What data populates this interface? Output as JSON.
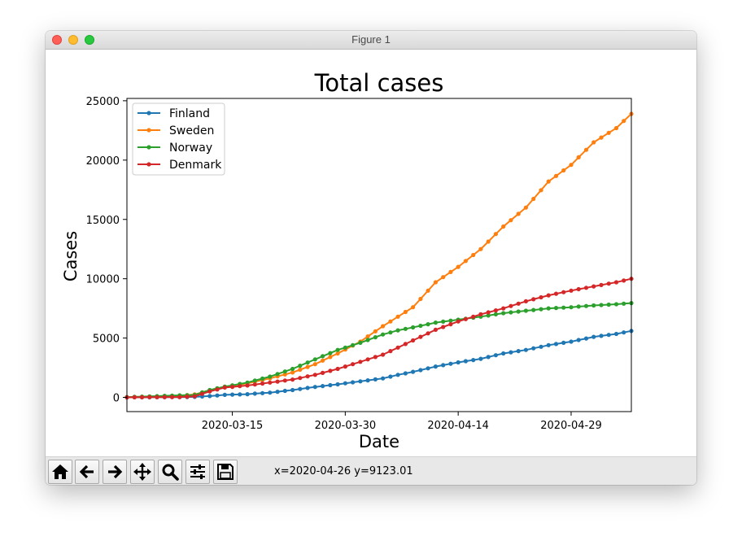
{
  "window": {
    "title": "Figure 1"
  },
  "toolbar": {
    "buttons": [
      {
        "name": "home-button",
        "icon": "home-icon"
      },
      {
        "name": "back-button",
        "icon": "arrow-left-icon"
      },
      {
        "name": "forward-button",
        "icon": "arrow-right-icon"
      },
      {
        "name": "pan-button",
        "icon": "move-icon"
      },
      {
        "name": "zoom-button",
        "icon": "magnifier-icon"
      },
      {
        "name": "configure-subplots-button",
        "icon": "sliders-icon"
      },
      {
        "name": "save-button",
        "icon": "floppy-disk-icon"
      }
    ],
    "coordinates": "x=2020-04-26 y=9123.01"
  },
  "chart_data": {
    "type": "line",
    "title": "Total cases",
    "xlabel": "Date",
    "ylabel": "Cases",
    "x_start": "2020-03-01",
    "x_end": "2020-05-07",
    "xticks": [
      "2020-03-15",
      "2020-03-30",
      "2020-04-14",
      "2020-04-29"
    ],
    "yticks": [
      0,
      5000,
      10000,
      15000,
      20000,
      25000
    ],
    "ylim": [
      -1200,
      25200
    ],
    "grid": false,
    "legend_position": "top-left",
    "marker": "dot",
    "series": [
      {
        "name": "Finland",
        "color": "#1f77b4",
        "points": [
          [
            "2020-03-01",
            2
          ],
          [
            "2020-03-08",
            20
          ],
          [
            "2020-03-10",
            40
          ],
          [
            "2020-03-12",
            110
          ],
          [
            "2020-03-14",
            210
          ],
          [
            "2020-03-17",
            270
          ],
          [
            "2020-03-20",
            400
          ],
          [
            "2020-03-23",
            620
          ],
          [
            "2020-03-26",
            880
          ],
          [
            "2020-03-29",
            1100
          ],
          [
            "2020-04-01",
            1350
          ],
          [
            "2020-04-04",
            1600
          ],
          [
            "2020-04-06",
            1900
          ],
          [
            "2020-04-08",
            2150
          ],
          [
            "2020-04-11",
            2600
          ],
          [
            "2020-04-14",
            2950
          ],
          [
            "2020-04-17",
            3250
          ],
          [
            "2020-04-20",
            3700
          ],
          [
            "2020-04-23",
            4000
          ],
          [
            "2020-04-26",
            4400
          ],
          [
            "2020-04-29",
            4700
          ],
          [
            "2020-05-02",
            5100
          ],
          [
            "2020-05-05",
            5350
          ],
          [
            "2020-05-07",
            5600
          ]
        ]
      },
      {
        "name": "Sweden",
        "color": "#ff7f0e",
        "points": [
          [
            "2020-03-01",
            10
          ],
          [
            "2020-03-08",
            130
          ],
          [
            "2020-03-10",
            250
          ],
          [
            "2020-03-12",
            600
          ],
          [
            "2020-03-14",
            900
          ],
          [
            "2020-03-17",
            1180
          ],
          [
            "2020-03-20",
            1600
          ],
          [
            "2020-03-23",
            2100
          ],
          [
            "2020-03-26",
            2800
          ],
          [
            "2020-03-29",
            3700
          ],
          [
            "2020-04-01",
            4700
          ],
          [
            "2020-04-04",
            6000
          ],
          [
            "2020-04-06",
            6800
          ],
          [
            "2020-04-08",
            7600
          ],
          [
            "2020-04-11",
            9700
          ],
          [
            "2020-04-14",
            11000
          ],
          [
            "2020-04-17",
            12500
          ],
          [
            "2020-04-20",
            14400
          ],
          [
            "2020-04-23",
            16000
          ],
          [
            "2020-04-26",
            18200
          ],
          [
            "2020-04-29",
            19600
          ],
          [
            "2020-05-02",
            21500
          ],
          [
            "2020-05-05",
            22700
          ],
          [
            "2020-05-07",
            23900
          ]
        ]
      },
      {
        "name": "Norway",
        "color": "#2ca02c",
        "points": [
          [
            "2020-03-01",
            20
          ],
          [
            "2020-03-08",
            170
          ],
          [
            "2020-03-10",
            200
          ],
          [
            "2020-03-12",
            620
          ],
          [
            "2020-03-14",
            900
          ],
          [
            "2020-03-17",
            1250
          ],
          [
            "2020-03-20",
            1750
          ],
          [
            "2020-03-23",
            2400
          ],
          [
            "2020-03-26",
            3200
          ],
          [
            "2020-03-29",
            4000
          ],
          [
            "2020-04-01",
            4600
          ],
          [
            "2020-04-04",
            5300
          ],
          [
            "2020-04-06",
            5650
          ],
          [
            "2020-04-08",
            5900
          ],
          [
            "2020-04-11",
            6300
          ],
          [
            "2020-04-14",
            6550
          ],
          [
            "2020-04-17",
            6800
          ],
          [
            "2020-04-20",
            7100
          ],
          [
            "2020-04-23",
            7300
          ],
          [
            "2020-04-26",
            7500
          ],
          [
            "2020-04-29",
            7600
          ],
          [
            "2020-05-02",
            7750
          ],
          [
            "2020-05-05",
            7850
          ],
          [
            "2020-05-07",
            7950
          ]
        ]
      },
      {
        "name": "Denmark",
        "color": "#d62728",
        "points": [
          [
            "2020-03-01",
            0
          ],
          [
            "2020-03-08",
            30
          ],
          [
            "2020-03-10",
            90
          ],
          [
            "2020-03-12",
            500
          ],
          [
            "2020-03-14",
            830
          ],
          [
            "2020-03-17",
            1000
          ],
          [
            "2020-03-20",
            1250
          ],
          [
            "2020-03-23",
            1500
          ],
          [
            "2020-03-26",
            1900
          ],
          [
            "2020-03-29",
            2400
          ],
          [
            "2020-04-01",
            3000
          ],
          [
            "2020-04-04",
            3600
          ],
          [
            "2020-04-06",
            4200
          ],
          [
            "2020-04-08",
            4800
          ],
          [
            "2020-04-11",
            5700
          ],
          [
            "2020-04-14",
            6400
          ],
          [
            "2020-04-17",
            7000
          ],
          [
            "2020-04-20",
            7500
          ],
          [
            "2020-04-23",
            8100
          ],
          [
            "2020-04-26",
            8600
          ],
          [
            "2020-04-29",
            9000
          ],
          [
            "2020-05-02",
            9350
          ],
          [
            "2020-05-05",
            9700
          ],
          [
            "2020-05-07",
            10000
          ]
        ]
      }
    ]
  }
}
